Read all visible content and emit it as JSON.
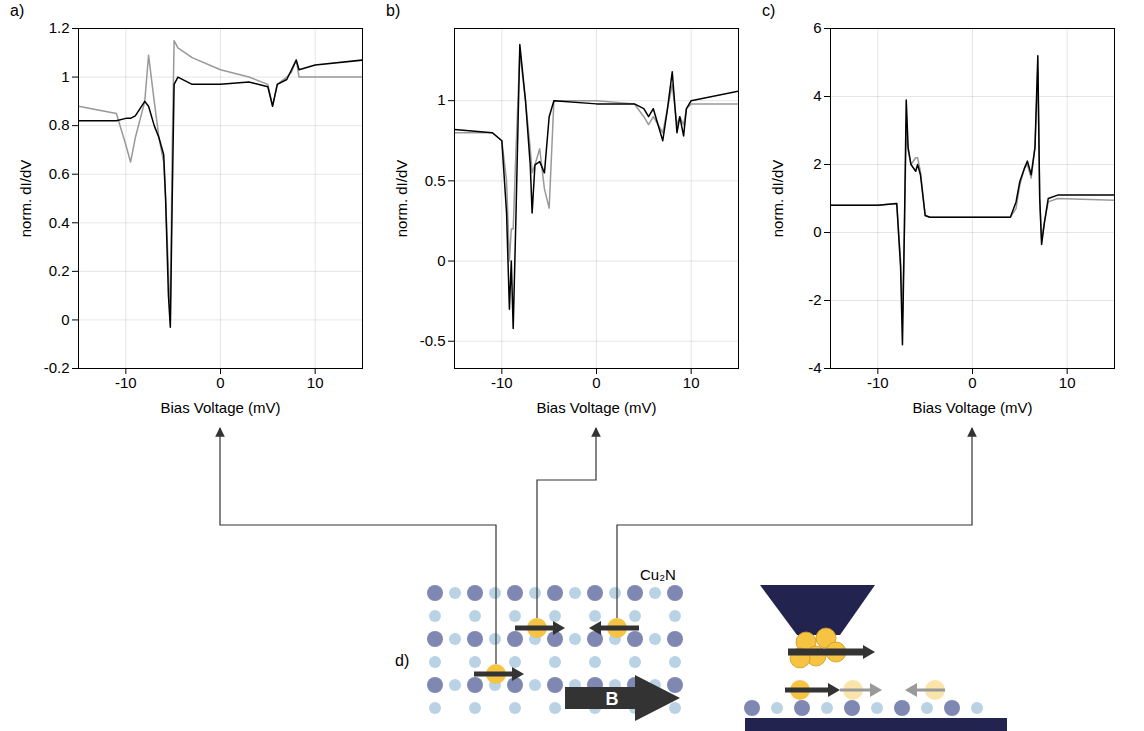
{
  "chart_data": [
    {
      "type": "line",
      "title": "a)",
      "x_label": "Bias Voltage (mV)",
      "y_label": "norm. dI/dV",
      "x": [
        -15,
        -11,
        -10,
        -9.5,
        -9,
        -8,
        -7.6,
        -7,
        -6.5,
        -6,
        -5.8,
        -5.5,
        -5.3,
        -5.1,
        -4.9,
        -4.5,
        -3,
        0,
        3,
        5,
        5.5,
        6,
        7,
        7.5,
        8,
        8.3,
        10,
        15
      ],
      "series": [
        {
          "color": "#999999",
          "values": [
            0.88,
            0.85,
            0.72,
            0.65,
            0.75,
            0.9,
            1.09,
            0.9,
            0.75,
            0.65,
            0.5,
            0.2,
            0,
            0.7,
            1.15,
            1.12,
            1.08,
            1.03,
            1.0,
            0.97,
            0.88,
            0.97,
            1.0,
            1.02,
            1.07,
            1.0,
            1.0,
            1.0
          ]
        },
        {
          "color": "#000000",
          "values": [
            0.82,
            0.82,
            0.83,
            0.83,
            0.84,
            0.9,
            0.88,
            0.8,
            0.75,
            0.68,
            0.5,
            0.1,
            -0.03,
            0.5,
            0.97,
            1.0,
            0.97,
            0.97,
            0.98,
            0.96,
            0.88,
            0.97,
            0.99,
            1.03,
            1.07,
            1.03,
            1.05,
            1.07
          ]
        }
      ],
      "xlim": [
        -15,
        15
      ],
      "xticks": [
        -10,
        0,
        10
      ],
      "ylim": [
        -0.2,
        1.2
      ],
      "yticks": [
        -0.2,
        0,
        0.2,
        0.4,
        0.6,
        0.8,
        1,
        1.2
      ],
      "grid": true
    },
    {
      "type": "line",
      "title": "b)",
      "x_label": "Bias Voltage (mV)",
      "y_label": "norm. dI/dV",
      "x": [
        -15,
        -11,
        -10,
        -9.5,
        -9.2,
        -9,
        -8.8,
        -8.5,
        -8.1,
        -7.5,
        -7,
        -6.8,
        -6.5,
        -6,
        -5.5,
        -5,
        -4.5,
        0,
        4,
        5,
        5.5,
        6,
        7,
        7.5,
        8,
        8.5,
        8.8,
        9.2,
        9.5,
        10,
        15
      ],
      "series": [
        {
          "color": "#999999",
          "values": [
            0.8,
            0.8,
            0.75,
            0.5,
            0,
            0.2,
            0.2,
            0.7,
            1.3,
            1.0,
            0.7,
            0.55,
            0.6,
            0.7,
            0.45,
            0.33,
            1.0,
            1.0,
            0.98,
            0.9,
            0.85,
            0.9,
            0.8,
            0.95,
            1.1,
            0.85,
            0.9,
            0.85,
            0.95,
            0.98,
            0.98
          ]
        },
        {
          "color": "#000000",
          "values": [
            0.82,
            0.8,
            0.75,
            0.3,
            -0.3,
            0,
            -0.42,
            0.3,
            1.35,
            1.0,
            0.6,
            0.3,
            0.6,
            0.62,
            0.55,
            0.9,
            1.0,
            0.98,
            0.98,
            0.95,
            0.9,
            0.95,
            0.75,
            0.95,
            1.18,
            0.8,
            0.9,
            0.78,
            0.95,
            1.0,
            1.06
          ]
        }
      ],
      "xlim": [
        -15,
        15
      ],
      "xticks": [
        -10,
        0,
        10
      ],
      "ylim": [
        -0.67,
        1.45
      ],
      "yticks": [
        -0.5,
        0,
        0.5,
        1
      ],
      "grid": true
    },
    {
      "type": "line",
      "title": "c)",
      "x_label": "Bias Voltage (mV)",
      "y_label": "norm. dI/dV",
      "x": [
        -15,
        -10,
        -8,
        -7.6,
        -7.4,
        -7.2,
        -7,
        -6.8,
        -6.5,
        -6,
        -5.8,
        -5.5,
        -5,
        -4.5,
        0,
        4,
        4.6,
        5,
        5.5,
        5.8,
        6.2,
        6.6,
        6.9,
        7.1,
        7.3,
        7.6,
        8,
        9,
        15
      ],
      "series": [
        {
          "color": "#999999",
          "values": [
            0.8,
            0.8,
            0.85,
            -0.8,
            -2.5,
            0,
            3.0,
            2.4,
            2.0,
            2.2,
            2.2,
            1.8,
            0.5,
            0.45,
            0.45,
            0.45,
            0.7,
            1.4,
            1.9,
            2.0,
            1.6,
            2.5,
            4.8,
            1.0,
            -0.2,
            0.3,
            0.9,
            1.0,
            0.95
          ]
        },
        {
          "color": "#000000",
          "values": [
            0.8,
            0.8,
            0.85,
            -1,
            -3.3,
            0,
            3.9,
            2.5,
            2.0,
            1.8,
            2.0,
            1.7,
            0.5,
            0.45,
            0.45,
            0.45,
            0.9,
            1.5,
            1.9,
            2.1,
            1.7,
            2.5,
            5.2,
            1.0,
            -0.35,
            0.3,
            1.0,
            1.1,
            1.1
          ]
        }
      ],
      "xlim": [
        -15,
        15
      ],
      "xticks": [
        -10,
        0,
        10
      ],
      "ylim": [
        -4,
        6
      ],
      "yticks": [
        -4,
        -2,
        0,
        2,
        4,
        6
      ],
      "grid": true
    }
  ],
  "diagram": {
    "label": "d)",
    "substrate": "Cu₂N",
    "field": "B"
  }
}
